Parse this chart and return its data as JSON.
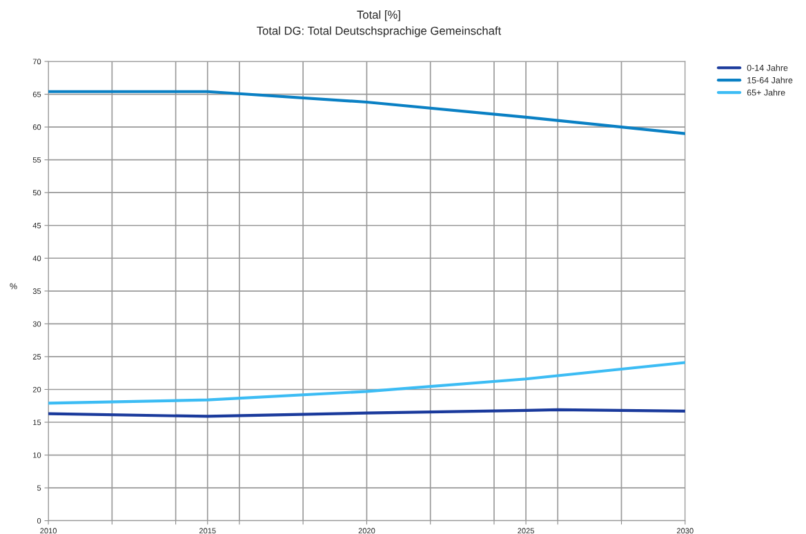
{
  "chart_data": {
    "type": "line",
    "title": "Total [%]",
    "subtitle": "Total DG: Total Deutschsprachige Gemeinschaft",
    "ylabel": "%",
    "x": [
      2010,
      2015,
      2020,
      2025,
      2026,
      2030
    ],
    "series": [
      {
        "name": "0-14 Jahre",
        "color": "#1a3a9c",
        "values": [
          16.3,
          15.9,
          16.4,
          16.8,
          16.9,
          16.7
        ]
      },
      {
        "name": "15-64 Jahre",
        "color": "#0a80c4",
        "values": [
          65.4,
          65.4,
          63.8,
          61.5,
          61.0,
          59.0
        ]
      },
      {
        "name": "65+ Jahre",
        "color": "#3cbcf4",
        "values": [
          17.9,
          18.4,
          19.7,
          21.6,
          22.1,
          24.1
        ]
      }
    ],
    "xlim": [
      2010,
      2030
    ],
    "xticks": [
      2010,
      {
        "value": 2012,
        "label": null
      },
      {
        "value": 2014,
        "label": null
      },
      2015,
      {
        "value": 2016,
        "label": null
      },
      {
        "value": 2018,
        "label": null
      },
      2020,
      {
        "value": 2022,
        "label": null
      },
      {
        "value": 2024,
        "label": null
      },
      2025,
      {
        "value": 2026,
        "label": null
      },
      {
        "value": 2028,
        "label": null
      },
      2030
    ],
    "ylim": [
      0,
      70
    ],
    "yticks": [
      0,
      5,
      10,
      15,
      20,
      25,
      30,
      35,
      40,
      45,
      50,
      55,
      60,
      65,
      70
    ],
    "grid": true,
    "legend": "top right",
    "marker": "none",
    "line_style": "solid"
  }
}
